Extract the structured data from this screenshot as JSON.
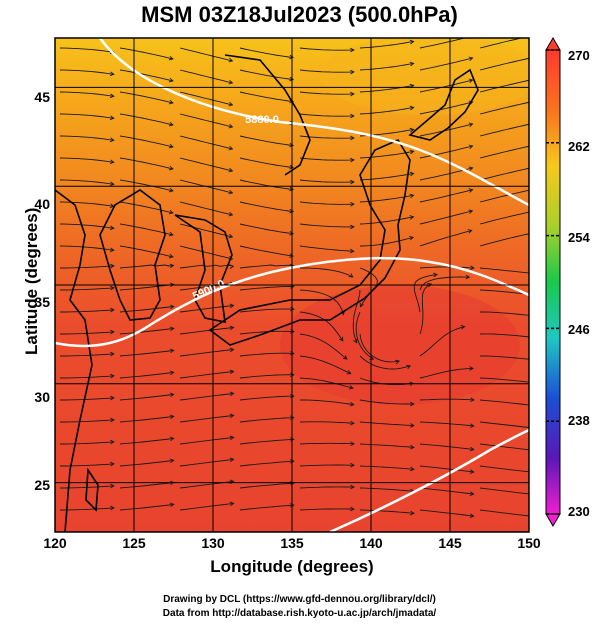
{
  "title": "MSM 03Z18Jul2023 (500.0hPa)",
  "axes": {
    "xlabel": "Longitude (degrees)",
    "ylabel": "Latitude  (degrees)",
    "xticks": [
      "120",
      "125",
      "130",
      "135",
      "140",
      "145",
      "150"
    ],
    "yticks": [
      "45",
      "40",
      "35",
      "30",
      "25"
    ],
    "xlim": [
      120,
      150
    ],
    "ylim": [
      22.5,
      47.5
    ]
  },
  "colorbar": {
    "ticks": [
      "270",
      "262",
      "254",
      "246",
      "238",
      "230"
    ],
    "range": [
      230,
      270
    ]
  },
  "contours": {
    "labels": [
      "5880.0",
      "5900.0"
    ]
  },
  "credits": {
    "line1": "Drawing by DCL (https://www.gfd-dennou.org/library/dcl/)",
    "line2": "Data from http://database.rish.kyoto-u.ac.jp/arch/jmadata/"
  },
  "chart_data": {
    "type": "heatmap",
    "title": "MSM 03Z18Jul2023 (500.0hPa)",
    "xlabel": "Longitude (degrees)",
    "ylabel": "Latitude  (degrees)",
    "xlim": [
      120,
      150
    ],
    "ylim": [
      22.5,
      47.5
    ],
    "color_range": [
      230,
      270
    ],
    "colorbar_ticks": [
      270,
      262,
      254,
      246,
      238,
      230
    ],
    "contour_labels": [
      "5880.0",
      "5900.0"
    ]
  }
}
